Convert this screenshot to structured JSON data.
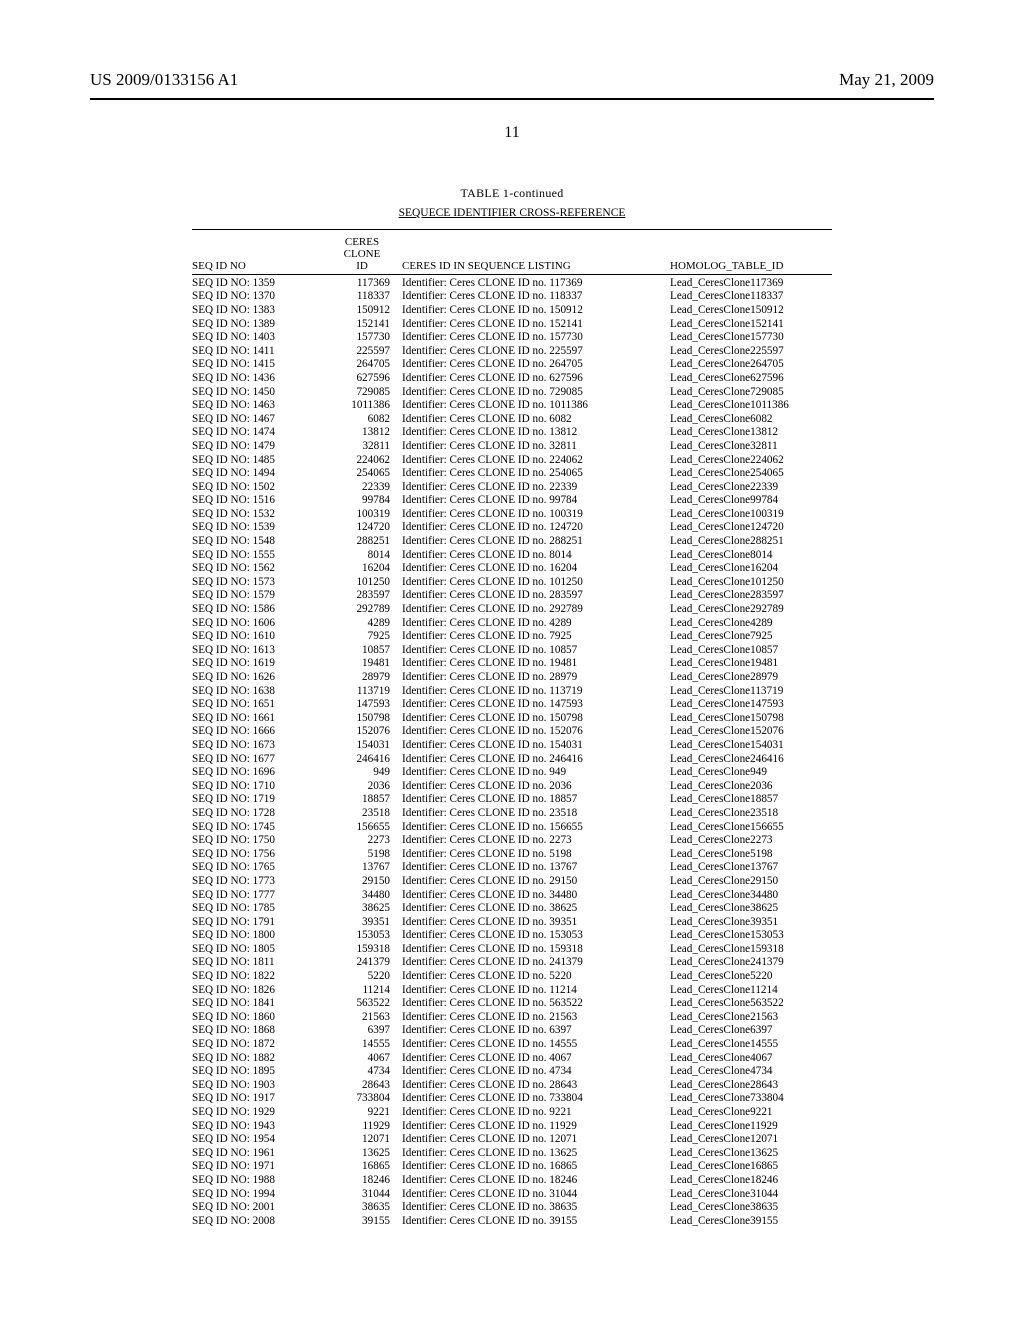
{
  "header": {
    "pub_number": "US 2009/0133156 A1",
    "pub_date": "May 21, 2009",
    "page_number": "11"
  },
  "table": {
    "type": "table",
    "caption": "TABLE 1-continued",
    "subcaption": "SEQUECE IDENTIFIER CROSS-REFERENCE",
    "columns": [
      "SEQ ID NO",
      "CERES CLONE ID",
      "CERES ID IN SEQUENCE LISTING",
      "HOMOLOG_TABLE_ID"
    ],
    "col2_header_lines": [
      "CERES",
      "CLONE",
      "ID"
    ],
    "rows": [
      [
        "SEQ ID NO: 1359",
        "117369",
        "Identifier: Ceres CLONE ID no. 117369",
        "Lead_CeresClone117369"
      ],
      [
        "SEQ ID NO: 1370",
        "118337",
        "Identifier: Ceres CLONE ID no. 118337",
        "Lead_CeresClone118337"
      ],
      [
        "SEQ ID NO: 1383",
        "150912",
        "Identifier: Ceres CLONE ID no. 150912",
        "Lead_CeresClone150912"
      ],
      [
        "SEQ ID NO: 1389",
        "152141",
        "Identifier: Ceres CLONE ID no. 152141",
        "Lead_CeresClone152141"
      ],
      [
        "SEQ ID NO: 1403",
        "157730",
        "Identifier: Ceres CLONE ID no. 157730",
        "Lead_CeresClone157730"
      ],
      [
        "SEQ ID NO: 1411",
        "225597",
        "Identifier: Ceres CLONE ID no. 225597",
        "Lead_CeresClone225597"
      ],
      [
        "SEQ ID NO: 1415",
        "264705",
        "Identifier: Ceres CLONE ID no. 264705",
        "Lead_CeresClone264705"
      ],
      [
        "SEQ ID NO: 1436",
        "627596",
        "Identifier: Ceres CLONE ID no. 627596",
        "Lead_CeresClone627596"
      ],
      [
        "SEQ ID NO: 1450",
        "729085",
        "Identifier: Ceres CLONE ID no. 729085",
        "Lead_CeresClone729085"
      ],
      [
        "SEQ ID NO: 1463",
        "1011386",
        "Identifier: Ceres CLONE ID no. 1011386",
        "Lead_CeresClone1011386"
      ],
      [
        "SEQ ID NO: 1467",
        "6082",
        "Identifier: Ceres CLONE ID no. 6082",
        "Lead_CeresClone6082"
      ],
      [
        "SEQ ID NO: 1474",
        "13812",
        "Identifier: Ceres CLONE ID no. 13812",
        "Lead_CeresClone13812"
      ],
      [
        "SEQ ID NO: 1479",
        "32811",
        "Identifier: Ceres CLONE ID no. 32811",
        "Lead_CeresClone32811"
      ],
      [
        "SEQ ID NO: 1485",
        "224062",
        "Identifier: Ceres CLONE ID no. 224062",
        "Lead_CeresClone224062"
      ],
      [
        "SEQ ID NO: 1494",
        "254065",
        "Identifier: Ceres CLONE ID no. 254065",
        "Lead_CeresClone254065"
      ],
      [
        "SEQ ID NO: 1502",
        "22339",
        "Identifier: Ceres CLONE ID no. 22339",
        "Lead_CeresClone22339"
      ],
      [
        "SEQ ID NO: 1516",
        "99784",
        "Identifier: Ceres CLONE ID no. 99784",
        "Lead_CeresClone99784"
      ],
      [
        "SEQ ID NO: 1532",
        "100319",
        "Identifier: Ceres CLONE ID no. 100319",
        "Lead_CeresClone100319"
      ],
      [
        "SEQ ID NO: 1539",
        "124720",
        "Identifier: Ceres CLONE ID no. 124720",
        "Lead_CeresClone124720"
      ],
      [
        "SEQ ID NO: 1548",
        "288251",
        "Identifier: Ceres CLONE ID no. 288251",
        "Lead_CeresClone288251"
      ],
      [
        "SEQ ID NO: 1555",
        "8014",
        "Identifier: Ceres CLONE ID no. 8014",
        "Lead_CeresClone8014"
      ],
      [
        "SEQ ID NO: 1562",
        "16204",
        "Identifier: Ceres CLONE ID no. 16204",
        "Lead_CeresClone16204"
      ],
      [
        "SEQ ID NO: 1573",
        "101250",
        "Identifier: Ceres CLONE ID no. 101250",
        "Lead_CeresClone101250"
      ],
      [
        "SEQ ID NO: 1579",
        "283597",
        "Identifier: Ceres CLONE ID no. 283597",
        "Lead_CeresClone283597"
      ],
      [
        "SEQ ID NO: 1586",
        "292789",
        "Identifier: Ceres CLONE ID no. 292789",
        "Lead_CeresClone292789"
      ],
      [
        "SEQ ID NO: 1606",
        "4289",
        "Identifier: Ceres CLONE ID no. 4289",
        "Lead_CeresClone4289"
      ],
      [
        "SEQ ID NO: 1610",
        "7925",
        "Identifier: Ceres CLONE ID no. 7925",
        "Lead_CeresClone7925"
      ],
      [
        "SEQ ID NO: 1613",
        "10857",
        "Identifier: Ceres CLONE ID no. 10857",
        "Lead_CeresClone10857"
      ],
      [
        "SEQ ID NO: 1619",
        "19481",
        "Identifier: Ceres CLONE ID no. 19481",
        "Lead_CeresClone19481"
      ],
      [
        "SEQ ID NO: 1626",
        "28979",
        "Identifier: Ceres CLONE ID no. 28979",
        "Lead_CeresClone28979"
      ],
      [
        "SEQ ID NO: 1638",
        "113719",
        "Identifier: Ceres CLONE ID no. 113719",
        "Lead_CeresClone113719"
      ],
      [
        "SEQ ID NO: 1651",
        "147593",
        "Identifier: Ceres CLONE ID no. 147593",
        "Lead_CeresClone147593"
      ],
      [
        "SEQ ID NO: 1661",
        "150798",
        "Identifier: Ceres CLONE ID no. 150798",
        "Lead_CeresClone150798"
      ],
      [
        "SEQ ID NO: 1666",
        "152076",
        "Identifier: Ceres CLONE ID no. 152076",
        "Lead_CeresClone152076"
      ],
      [
        "SEQ ID NO: 1673",
        "154031",
        "Identifier: Ceres CLONE ID no. 154031",
        "Lead_CeresClone154031"
      ],
      [
        "SEQ ID NO: 1677",
        "246416",
        "Identifier: Ceres CLONE ID no. 246416",
        "Lead_CeresClone246416"
      ],
      [
        "SEQ ID NO: 1696",
        "949",
        "Identifier: Ceres CLONE ID no. 949",
        "Lead_CeresClone949"
      ],
      [
        "SEQ ID NO: 1710",
        "2036",
        "Identifier: Ceres CLONE ID no. 2036",
        "Lead_CeresClone2036"
      ],
      [
        "SEQ ID NO: 1719",
        "18857",
        "Identifier: Ceres CLONE ID no. 18857",
        "Lead_CeresClone18857"
      ],
      [
        "SEQ ID NO: 1728",
        "23518",
        "Identifier: Ceres CLONE ID no. 23518",
        "Lead_CeresClone23518"
      ],
      [
        "SEQ ID NO: 1745",
        "156655",
        "Identifier: Ceres CLONE ID no. 156655",
        "Lead_CeresClone156655"
      ],
      [
        "SEQ ID NO: 1750",
        "2273",
        "Identifier: Ceres CLONE ID no. 2273",
        "Lead_CeresClone2273"
      ],
      [
        "SEQ ID NO: 1756",
        "5198",
        "Identifier: Ceres CLONE ID no. 5198",
        "Lead_CeresClone5198"
      ],
      [
        "SEQ ID NO: 1765",
        "13767",
        "Identifier: Ceres CLONE ID no. 13767",
        "Lead_CeresClone13767"
      ],
      [
        "SEQ ID NO: 1773",
        "29150",
        "Identifier: Ceres CLONE ID no. 29150",
        "Lead_CeresClone29150"
      ],
      [
        "SEQ ID NO: 1777",
        "34480",
        "Identifier: Ceres CLONE ID no. 34480",
        "Lead_CeresClone34480"
      ],
      [
        "SEQ ID NO: 1785",
        "38625",
        "Identifier: Ceres CLONE ID no. 38625",
        "Lead_CeresClone38625"
      ],
      [
        "SEQ ID NO: 1791",
        "39351",
        "Identifier: Ceres CLONE ID no. 39351",
        "Lead_CeresClone39351"
      ],
      [
        "SEQ ID NO: 1800",
        "153053",
        "Identifier: Ceres CLONE ID no. 153053",
        "Lead_CeresClone153053"
      ],
      [
        "SEQ ID NO: 1805",
        "159318",
        "Identifier: Ceres CLONE ID no. 159318",
        "Lead_CeresClone159318"
      ],
      [
        "SEQ ID NO: 1811",
        "241379",
        "Identifier: Ceres CLONE ID no. 241379",
        "Lead_CeresClone241379"
      ],
      [
        "SEQ ID NO: 1822",
        "5220",
        "Identifier: Ceres CLONE ID no. 5220",
        "Lead_CeresClone5220"
      ],
      [
        "SEQ ID NO: 1826",
        "11214",
        "Identifier: Ceres CLONE ID no. 11214",
        "Lead_CeresClone11214"
      ],
      [
        "SEQ ID NO: 1841",
        "563522",
        "Identifier: Ceres CLONE ID no. 563522",
        "Lead_CeresClone563522"
      ],
      [
        "SEQ ID NO: 1860",
        "21563",
        "Identifier: Ceres CLONE ID no. 21563",
        "Lead_CeresClone21563"
      ],
      [
        "SEQ ID NO: 1868",
        "6397",
        "Identifier: Ceres CLONE ID no. 6397",
        "Lead_CeresClone6397"
      ],
      [
        "SEQ ID NO: 1872",
        "14555",
        "Identifier: Ceres CLONE ID no. 14555",
        "Lead_CeresClone14555"
      ],
      [
        "SEQ ID NO: 1882",
        "4067",
        "Identifier: Ceres CLONE ID no. 4067",
        "Lead_CeresClone4067"
      ],
      [
        "SEQ ID NO: 1895",
        "4734",
        "Identifier: Ceres CLONE ID no. 4734",
        "Lead_CeresClone4734"
      ],
      [
        "SEQ ID NO: 1903",
        "28643",
        "Identifier: Ceres CLONE ID no. 28643",
        "Lead_CeresClone28643"
      ],
      [
        "SEQ ID NO: 1917",
        "733804",
        "Identifier: Ceres CLONE ID no. 733804",
        "Lead_CeresClone733804"
      ],
      [
        "SEQ ID NO: 1929",
        "9221",
        "Identifier: Ceres CLONE ID no. 9221",
        "Lead_CeresClone9221"
      ],
      [
        "SEQ ID NO: 1943",
        "11929",
        "Identifier: Ceres CLONE ID no. 11929",
        "Lead_CeresClone11929"
      ],
      [
        "SEQ ID NO: 1954",
        "12071",
        "Identifier: Ceres CLONE ID no. 12071",
        "Lead_CeresClone12071"
      ],
      [
        "SEQ ID NO: 1961",
        "13625",
        "Identifier: Ceres CLONE ID no. 13625",
        "Lead_CeresClone13625"
      ],
      [
        "SEQ ID NO: 1971",
        "16865",
        "Identifier: Ceres CLONE ID no. 16865",
        "Lead_CeresClone16865"
      ],
      [
        "SEQ ID NO: 1988",
        "18246",
        "Identifier: Ceres CLONE ID no. 18246",
        "Lead_CeresClone18246"
      ],
      [
        "SEQ ID NO: 1994",
        "31044",
        "Identifier: Ceres CLONE ID no. 31044",
        "Lead_CeresClone31044"
      ],
      [
        "SEQ ID NO: 2001",
        "38635",
        "Identifier: Ceres CLONE ID no. 38635",
        "Lead_CeresClone38635"
      ],
      [
        "SEQ ID NO: 2008",
        "39155",
        "Identifier: Ceres CLONE ID no. 39155",
        "Lead_CeresClone39155"
      ]
    ]
  }
}
